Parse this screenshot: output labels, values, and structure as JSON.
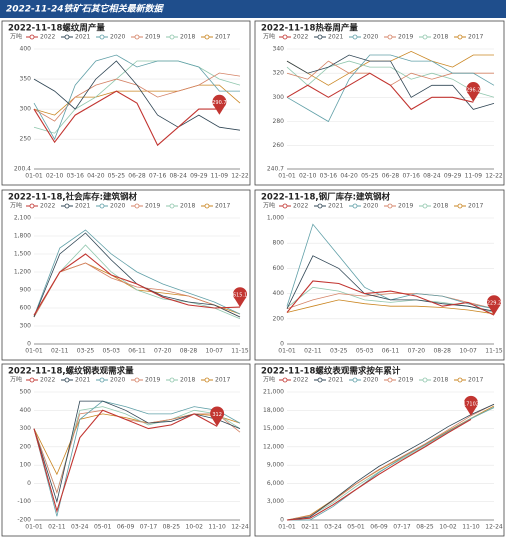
{
  "header": {
    "title": "2022-11-24铁矿石其它相关最新数据"
  },
  "chart_data": [
    {
      "type": "line",
      "title": "2022-11-18螺纹周产量",
      "unit": "万吨",
      "categories": [
        "01-01",
        "02-10",
        "03-16",
        "04-20",
        "05-25",
        "06-28",
        "07-16",
        "08-24",
        "09-29",
        "11-09",
        "12-22"
      ],
      "ylim": [
        200.4,
        400
      ],
      "yticks": [
        200.4,
        250,
        300,
        350,
        400
      ],
      "marker": 290.7,
      "series": [
        {
          "name": "2022",
          "color": "#c23531",
          "values": [
            300,
            245,
            290,
            310,
            330,
            310,
            240,
            270,
            300,
            300,
            null
          ]
        },
        {
          "name": "2021",
          "color": "#2f4554",
          "values": [
            350,
            330,
            300,
            350,
            380,
            340,
            290,
            270,
            290,
            270,
            265
          ]
        },
        {
          "name": "2020",
          "color": "#61a0a8",
          "values": [
            310,
            250,
            340,
            380,
            390,
            370,
            380,
            380,
            370,
            330,
            330
          ]
        },
        {
          "name": "2019",
          "color": "#d48265",
          "values": [
            300,
            280,
            320,
            340,
            350,
            340,
            320,
            330,
            340,
            360,
            355
          ]
        },
        {
          "name": "2018",
          "color": "#91c7ae",
          "values": [
            270,
            260,
            300,
            320,
            350,
            380,
            380,
            380,
            370,
            350,
            340
          ]
        },
        {
          "name": "2017",
          "color": "#ca8622",
          "values": [
            300,
            290,
            320,
            320,
            330,
            330,
            330,
            330,
            340,
            340,
            310
          ]
        }
      ]
    },
    {
      "type": "line",
      "title": "2022-11-18热卷周产量",
      "unit": "万吨",
      "categories": [
        "01-01",
        "02-10",
        "03-16",
        "04-20",
        "05-25",
        "06-28",
        "07-16",
        "08-24",
        "09-29",
        "11-09",
        "12-22"
      ],
      "ylim": [
        240.7,
        340
      ],
      "yticks": [
        240.7,
        260,
        280,
        300,
        320,
        340
      ],
      "marker": 296.2,
      "series": [
        {
          "name": "2022",
          "color": "#c23531",
          "values": [
            300,
            310,
            300,
            310,
            320,
            310,
            290,
            300,
            300,
            296,
            null
          ]
        },
        {
          "name": "2021",
          "color": "#2f4554",
          "values": [
            330,
            320,
            325,
            335,
            330,
            330,
            300,
            310,
            310,
            290,
            295
          ]
        },
        {
          "name": "2020",
          "color": "#61a0a8",
          "values": [
            300,
            290,
            280,
            315,
            335,
            335,
            330,
            330,
            320,
            320,
            310
          ]
        },
        {
          "name": "2019",
          "color": "#d48265",
          "values": [
            320,
            315,
            330,
            320,
            320,
            310,
            320,
            315,
            320,
            320,
            320
          ]
        },
        {
          "name": "2018",
          "color": "#91c7ae",
          "values": [
            325,
            310,
            325,
            330,
            325,
            325,
            315,
            320,
            315,
            305,
            300
          ]
        },
        {
          "name": "2017",
          "color": "#ca8622",
          "values": [
            330,
            320,
            310,
            320,
            330,
            330,
            338,
            330,
            325,
            335,
            335
          ]
        }
      ]
    },
    {
      "type": "line",
      "title": "2022-11-18,社会库存:建筑钢材",
      "unit": "万吨",
      "categories": [
        "01-01",
        "02-11",
        "03-25",
        "05-03",
        "06-11",
        "07-20",
        "08-28",
        "10-07",
        "11-15"
      ],
      "ylim": [
        0,
        2100
      ],
      "yticks": [
        0,
        300,
        600,
        900,
        {
          "value": 1200,
          "label": "1,200"
        },
        {
          "value": 1500,
          "label": "1,500"
        },
        {
          "value": 1800,
          "label": "1,800"
        },
        {
          "value": 2100,
          "label": "2,100"
        }
      ],
      "marker": 615.1,
      "series": [
        {
          "name": "2022",
          "color": "#c23531",
          "values": [
            480,
            1200,
            1500,
            1150,
            1000,
            780,
            650,
            600,
            615
          ]
        },
        {
          "name": "2021",
          "color": "#2f4554",
          "values": [
            450,
            1500,
            1850,
            1400,
            1000,
            800,
            700,
            650,
            450
          ]
        },
        {
          "name": "2020",
          "color": "#61a0a8",
          "values": [
            460,
            1600,
            1900,
            1500,
            1200,
            1000,
            850,
            700,
            500
          ]
        },
        {
          "name": "2019",
          "color": "#d48265",
          "values": [
            450,
            1200,
            1350,
            1100,
            950,
            900,
            800,
            650,
            450
          ]
        },
        {
          "name": "2018",
          "color": "#91c7ae",
          "values": [
            450,
            1200,
            1650,
            1200,
            900,
            750,
            700,
            600,
            420
          ]
        },
        {
          "name": "2017",
          "color": "#ca8622",
          "values": [
            450,
            1200,
            1350,
            1150,
            900,
            850,
            800,
            650,
            500
          ]
        }
      ]
    },
    {
      "type": "line",
      "title": "2022-11-18,钢厂库存:建筑钢材",
      "unit": "万吨",
      "categories": [
        "01-01",
        "02-11",
        "03-25",
        "05-03",
        "06-11",
        "07-20",
        "08-28",
        "10-07",
        "11-15"
      ],
      "ylim": [
        0,
        1000
      ],
      "yticks": [
        0,
        200,
        400,
        600,
        800,
        {
          "value": 1000,
          "label": "1,000"
        }
      ],
      "marker": 229.2,
      "series": [
        {
          "name": "2022",
          "color": "#c23531",
          "values": [
            250,
            500,
            480,
            400,
            420,
            380,
            300,
            330,
            229
          ]
        },
        {
          "name": "2021",
          "color": "#2f4554",
          "values": [
            280,
            700,
            600,
            400,
            350,
            350,
            320,
            300,
            260
          ]
        },
        {
          "name": "2020",
          "color": "#61a0a8",
          "values": [
            300,
            950,
            700,
            450,
            350,
            400,
            380,
            320,
            280
          ]
        },
        {
          "name": "2019",
          "color": "#d48265",
          "values": [
            280,
            350,
            400,
            380,
            400,
            400,
            380,
            330,
            280
          ]
        },
        {
          "name": "2018",
          "color": "#91c7ae",
          "values": [
            290,
            450,
            420,
            350,
            330,
            350,
            330,
            300,
            250
          ]
        },
        {
          "name": "2017",
          "color": "#ca8622",
          "values": [
            250,
            300,
            350,
            320,
            300,
            300,
            290,
            270,
            240
          ]
        }
      ]
    },
    {
      "type": "line",
      "title": "2022-11-18,螺纹钢表观需求量",
      "unit": "万吨",
      "categories": [
        "01-01",
        "02-11",
        "03-24",
        "05-01",
        "06-09",
        "07-17",
        "08-25",
        "10-02",
        "11-10",
        "12-24"
      ],
      "ylim": [
        -200,
        500
      ],
      "yticks": [
        -200,
        -100,
        0,
        100,
        200,
        300,
        400,
        500
      ],
      "marker": 312,
      "series": [
        {
          "name": "2022",
          "color": "#c23531",
          "values": [
            300,
            -150,
            250,
            400,
            350,
            300,
            320,
            380,
            312,
            null
          ]
        },
        {
          "name": "2021",
          "color": "#2f4554",
          "values": [
            300,
            -100,
            450,
            450,
            400,
            330,
            340,
            380,
            350,
            300
          ]
        },
        {
          "name": "2020",
          "color": "#61a0a8",
          "values": [
            300,
            -180,
            350,
            450,
            420,
            380,
            380,
            420,
            400,
            330
          ]
        },
        {
          "name": "2019",
          "color": "#d48265",
          "values": [
            300,
            -50,
            380,
            400,
            350,
            330,
            350,
            380,
            380,
            280
          ]
        },
        {
          "name": "2018",
          "color": "#91c7ae",
          "values": [
            300,
            -50,
            400,
            420,
            380,
            320,
            350,
            400,
            380,
            300
          ]
        },
        {
          "name": "2017",
          "color": "#ca8622",
          "values": [
            300,
            50,
            350,
            380,
            360,
            330,
            350,
            380,
            370,
            330
          ]
        }
      ]
    },
    {
      "type": "line",
      "title": "2022-11-18螺纹表观需求按年累计",
      "unit": "万吨",
      "categories": [
        "01-01",
        "02-11",
        "03-24",
        "05-01",
        "06-09",
        "07-17",
        "08-25",
        "10-02",
        "11-10",
        "12-24"
      ],
      "ylim": [
        0,
        21000
      ],
      "yticks": [
        0,
        {
          "value": 3000,
          "label": "3,000"
        },
        {
          "value": 6000,
          "label": "6,000"
        },
        {
          "value": 9000,
          "label": "9,000"
        },
        {
          "value": 12000,
          "label": "12,000"
        },
        {
          "value": 15000,
          "label": "15,000"
        },
        {
          "value": 18000,
          "label": "18,000"
        },
        {
          "value": 21000,
          "label": "21,000"
        }
      ],
      "marker": 17102,
      "series": [
        {
          "name": "2022",
          "color": "#c23531",
          "values": [
            0,
            300,
            2500,
            5000,
            7500,
            9800,
            12000,
            14300,
            16500,
            null
          ]
        },
        {
          "name": "2021",
          "color": "#2f4554",
          "values": [
            0,
            500,
            3300,
            6200,
            8800,
            10900,
            13000,
            15300,
            17300,
            19000
          ]
        },
        {
          "name": "2020",
          "color": "#61a0a8",
          "values": [
            0,
            0,
            2200,
            5000,
            7800,
            10200,
            12300,
            14500,
            16600,
            18500
          ]
        },
        {
          "name": "2019",
          "color": "#d48265",
          "values": [
            0,
            700,
            3100,
            5900,
            8300,
            10400,
            12500,
            14800,
            17100,
            19000
          ]
        },
        {
          "name": "2018",
          "color": "#91c7ae",
          "values": [
            0,
            600,
            2800,
            5500,
            7900,
            10000,
            12100,
            14400,
            16700,
            18400
          ]
        },
        {
          "name": "2017",
          "color": "#ca8622",
          "values": [
            0,
            800,
            3300,
            5900,
            8200,
            10300,
            12400,
            14600,
            16700,
            18700
          ]
        }
      ]
    }
  ]
}
